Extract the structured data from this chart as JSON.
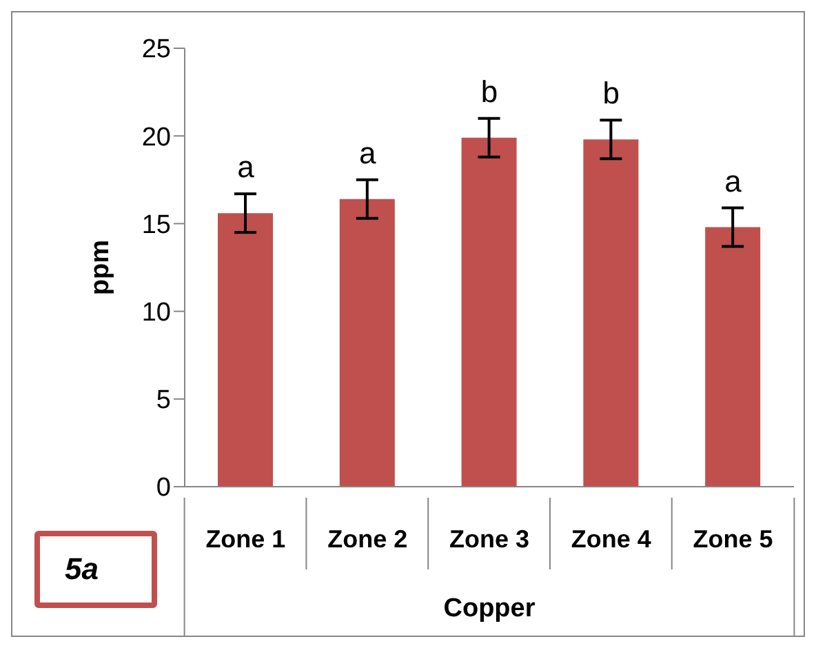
{
  "chart_data": {
    "type": "bar",
    "categories": [
      "Zone 1",
      "Zone 2",
      "Zone 3",
      "Zone 4",
      "Zone 5"
    ],
    "values": [
      15.6,
      16.4,
      19.9,
      19.8,
      14.8
    ],
    "errors": [
      1.1,
      1.1,
      1.1,
      1.1,
      1.1
    ],
    "color": "#c0504d",
    "ylabel": "ppm",
    "xlabel": "Copper",
    "ylim": [
      0,
      25
    ],
    "yticks": [
      0,
      5,
      10,
      15,
      20,
      25
    ],
    "grid": false,
    "legend": false,
    "annotations": [
      {
        "text": "a",
        "x": "Zone 1",
        "y": 16.7
      },
      {
        "text": "a",
        "x": "Zone 2",
        "y": 17.5
      },
      {
        "text": "b",
        "x": "Zone 3",
        "y": 21
      },
      {
        "text": "b",
        "x": "Zone 4",
        "y": 20.9
      },
      {
        "text": "a",
        "x": "Zone 5",
        "y": 15.9
      },
      "5a"
    ]
  }
}
